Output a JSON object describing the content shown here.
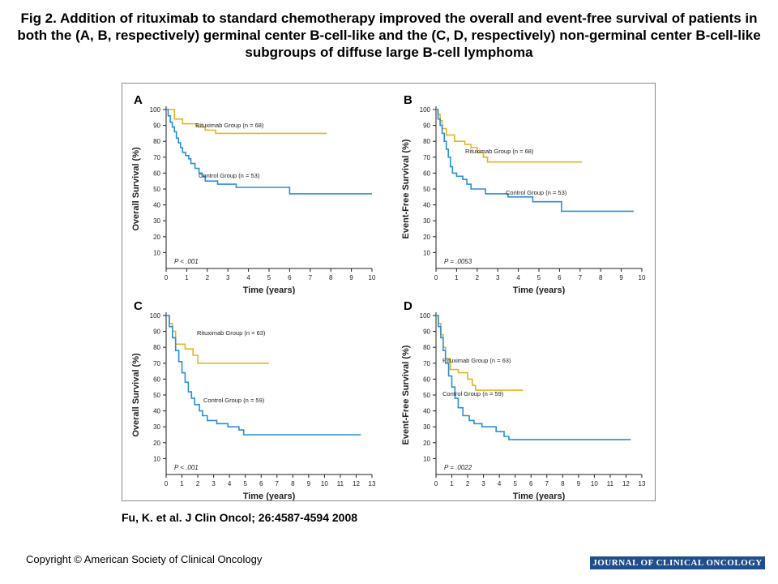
{
  "title": "Fig 2. Addition of rituximab to standard chemotherapy improved the overall and event-free survival of patients in both the (A, B, respectively) germinal center B-cell-like and the (C, D, respectively) non-germinal center B-cell-like subgroups of diffuse large B-cell lymphoma",
  "citation": "Fu, K. et al. J Clin Oncol; 26:4587-4594 2008",
  "copyright": "Copyright © American Society of Clinical Oncology",
  "journal_logo": "JOURNAL OF CLINICAL ONCOLOGY",
  "colors": {
    "rituximab": "#e6b422",
    "control": "#2a8fd6"
  },
  "chart_data": [
    {
      "panel": "A",
      "type": "line",
      "xlabel": "Time (years)",
      "ylabel": "Overall Survival (%)",
      "xlim": [
        0,
        10
      ],
      "ylim": [
        0,
        100
      ],
      "xticks": [
        0,
        1,
        2,
        3,
        4,
        5,
        6,
        7,
        8,
        9,
        10
      ],
      "yticks": [
        10,
        20,
        30,
        40,
        50,
        60,
        70,
        80,
        90,
        100
      ],
      "pvalue": "P < .001",
      "series": [
        {
          "name": "Rituximab Group (n = 68)",
          "x": [
            0,
            0.4,
            0.4,
            0.8,
            0.8,
            1.5,
            1.5,
            1.9,
            1.9,
            2.4,
            2.4,
            7.8
          ],
          "y": [
            100,
            100,
            94,
            94,
            91,
            91,
            89,
            89,
            87,
            87,
            85,
            85
          ]
        },
        {
          "name": "Control Group (n = 53)",
          "x": [
            0,
            0.1,
            0.1,
            0.2,
            0.2,
            0.3,
            0.3,
            0.4,
            0.4,
            0.5,
            0.5,
            0.6,
            0.6,
            0.7,
            0.7,
            0.8,
            0.8,
            0.95,
            0.95,
            1.1,
            1.1,
            1.2,
            1.2,
            1.4,
            1.4,
            1.6,
            1.6,
            1.75,
            1.75,
            1.9,
            1.9,
            2.5,
            2.5,
            3.4,
            3.4,
            6.0,
            6.0,
            10.0
          ],
          "y": [
            100,
            100,
            96,
            96,
            92,
            92,
            89,
            89,
            86,
            86,
            82,
            82,
            79,
            79,
            76,
            76,
            73,
            73,
            71,
            71,
            69,
            69,
            66,
            66,
            63,
            63,
            60,
            60,
            58,
            58,
            55,
            55,
            53,
            53,
            51,
            51,
            47,
            47
          ]
        }
      ]
    },
    {
      "panel": "B",
      "type": "line",
      "xlabel": "Time (years)",
      "ylabel": "Event-Free Survival (%)",
      "xlim": [
        0,
        10
      ],
      "ylim": [
        0,
        100
      ],
      "xticks": [
        0,
        1,
        2,
        3,
        4,
        5,
        6,
        7,
        8,
        9,
        10
      ],
      "yticks": [
        10,
        20,
        30,
        40,
        50,
        60,
        70,
        80,
        90,
        100
      ],
      "pvalue": "P = .0053",
      "series": [
        {
          "name": "Rituximab Group (n = 68)",
          "x": [
            0,
            0.1,
            0.1,
            0.2,
            0.2,
            0.3,
            0.3,
            0.5,
            0.5,
            0.9,
            0.9,
            1.4,
            1.4,
            1.7,
            1.7,
            2.0,
            2.0,
            2.3,
            2.3,
            2.5,
            2.5,
            7.1
          ],
          "y": [
            100,
            100,
            97,
            97,
            93,
            93,
            88,
            88,
            84,
            84,
            80,
            80,
            78,
            78,
            76,
            76,
            73,
            73,
            70,
            70,
            67,
            67
          ]
        },
        {
          "name": "Control Group (n = 53)",
          "x": [
            0,
            0.1,
            0.1,
            0.2,
            0.2,
            0.3,
            0.3,
            0.4,
            0.4,
            0.5,
            0.5,
            0.6,
            0.6,
            0.7,
            0.7,
            0.8,
            0.8,
            1.0,
            1.0,
            1.3,
            1.3,
            1.5,
            1.5,
            1.7,
            1.7,
            2.4,
            2.4,
            3.5,
            3.5,
            4.7,
            4.7,
            6.1,
            6.1,
            9.6
          ],
          "y": [
            100,
            100,
            94,
            94,
            90,
            90,
            85,
            85,
            80,
            80,
            75,
            75,
            70,
            70,
            64,
            64,
            60,
            60,
            58,
            58,
            56,
            56,
            53,
            53,
            50,
            50,
            47,
            47,
            45,
            45,
            42,
            42,
            36,
            36
          ]
        }
      ]
    },
    {
      "panel": "C",
      "type": "line",
      "xlabel": "Time (years)",
      "ylabel": "Overall Survival (%)",
      "xlim": [
        0,
        13
      ],
      "ylim": [
        0,
        100
      ],
      "xticks": [
        0,
        1,
        2,
        3,
        4,
        5,
        6,
        7,
        8,
        9,
        10,
        11,
        12,
        13
      ],
      "yticks": [
        10,
        20,
        30,
        40,
        50,
        60,
        70,
        80,
        90,
        100
      ],
      "pvalue": "P < .001",
      "series": [
        {
          "name": "Rituximab Group (n = 63)",
          "x": [
            0,
            0.2,
            0.2,
            0.4,
            0.4,
            0.6,
            0.6,
            1.2,
            1.2,
            1.7,
            1.7,
            2.0,
            2.0,
            6.5
          ],
          "y": [
            100,
            100,
            95,
            95,
            90,
            90,
            82,
            82,
            79,
            79,
            75,
            75,
            70,
            70
          ]
        },
        {
          "name": "Control Group (n = 59)",
          "x": [
            0,
            0.2,
            0.2,
            0.4,
            0.4,
            0.6,
            0.6,
            0.8,
            0.8,
            1.0,
            1.0,
            1.2,
            1.2,
            1.4,
            1.4,
            1.6,
            1.6,
            1.8,
            1.8,
            2.1,
            2.1,
            2.3,
            2.3,
            2.6,
            2.6,
            3.2,
            3.2,
            3.9,
            3.9,
            4.6,
            4.6,
            4.9,
            4.9,
            12.3
          ],
          "y": [
            100,
            100,
            93,
            93,
            86,
            86,
            78,
            78,
            71,
            71,
            64,
            64,
            58,
            58,
            52,
            52,
            48,
            48,
            44,
            44,
            40,
            40,
            37,
            37,
            34,
            34,
            32,
            32,
            30,
            30,
            28,
            28,
            25,
            25
          ]
        }
      ]
    },
    {
      "panel": "D",
      "type": "line",
      "xlabel": "Time (years)",
      "ylabel": "Event-Free Survival (%)",
      "xlim": [
        0,
        13
      ],
      "ylim": [
        0,
        100
      ],
      "xticks": [
        0,
        1,
        2,
        3,
        4,
        5,
        6,
        7,
        8,
        9,
        10,
        11,
        12,
        13
      ],
      "yticks": [
        10,
        20,
        30,
        40,
        50,
        60,
        70,
        80,
        90,
        100
      ],
      "pvalue": "P = .0022",
      "series": [
        {
          "name": "Rituximab Group (n = 63)",
          "x": [
            0,
            0.15,
            0.15,
            0.3,
            0.3,
            0.45,
            0.45,
            0.6,
            0.6,
            0.9,
            0.9,
            1.4,
            1.4,
            2.0,
            2.0,
            2.3,
            2.3,
            2.5,
            2.5,
            5.5
          ],
          "y": [
            100,
            100,
            95,
            95,
            88,
            88,
            80,
            80,
            73,
            73,
            66,
            66,
            64,
            64,
            60,
            60,
            56,
            56,
            53,
            53
          ]
        },
        {
          "name": "Control Group (n = 59)",
          "x": [
            0,
            0.15,
            0.15,
            0.3,
            0.3,
            0.45,
            0.45,
            0.6,
            0.6,
            0.8,
            0.8,
            1.0,
            1.0,
            1.2,
            1.2,
            1.4,
            1.4,
            1.7,
            1.7,
            2.1,
            2.1,
            2.4,
            2.4,
            2.9,
            2.9,
            3.8,
            3.8,
            4.3,
            4.3,
            4.6,
            4.6,
            12.3
          ],
          "y": [
            100,
            100,
            93,
            93,
            86,
            86,
            78,
            78,
            70,
            70,
            62,
            62,
            55,
            55,
            48,
            48,
            42,
            42,
            37,
            37,
            34,
            34,
            32,
            32,
            30,
            30,
            27,
            27,
            24,
            24,
            22,
            22
          ]
        }
      ]
    }
  ]
}
